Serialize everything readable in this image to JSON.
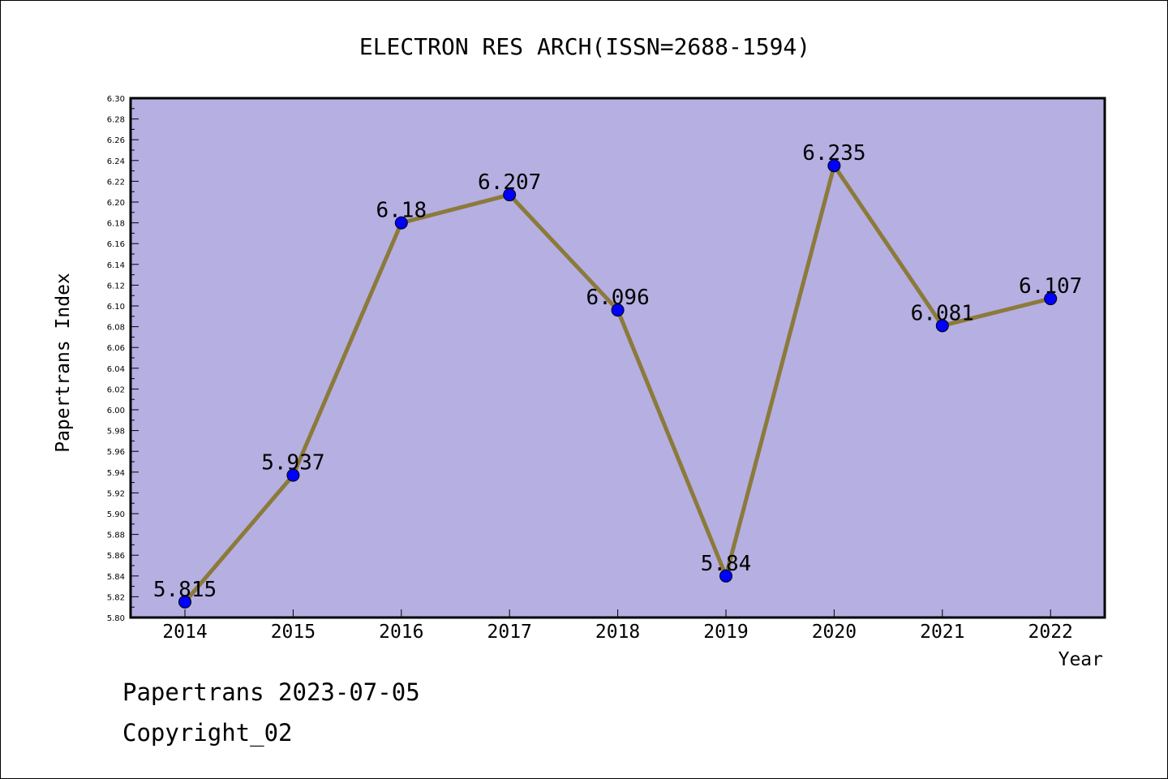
{
  "chart_data": {
    "type": "line",
    "title": "ELECTRON RES ARCH(ISSN=2688-1594)",
    "xlabel": "Year",
    "ylabel": "Papertrans Index",
    "ylim": [
      5.8,
      6.3
    ],
    "ytick_step": 0.02,
    "grid": false,
    "categories": [
      "2014",
      "2015",
      "2016",
      "2017",
      "2018",
      "2019",
      "2020",
      "2021",
      "2022"
    ],
    "series": [
      {
        "values": [
          5.815,
          5.937,
          6.18,
          6.207,
          6.096,
          5.84,
          6.235,
          6.081,
          6.107
        ],
        "labels": [
          "5.815",
          "5.937",
          "6.18",
          "6.207",
          "6.096",
          "5.84",
          "6.235",
          "6.081",
          "6.107"
        ],
        "line_color": "#8b7a3a",
        "marker_color": "#0000ff"
      }
    ],
    "plot_background": "#b5afe2"
  },
  "footer": {
    "date_line": "Papertrans 2023-07-05",
    "copyright": "Copyright_02"
  }
}
